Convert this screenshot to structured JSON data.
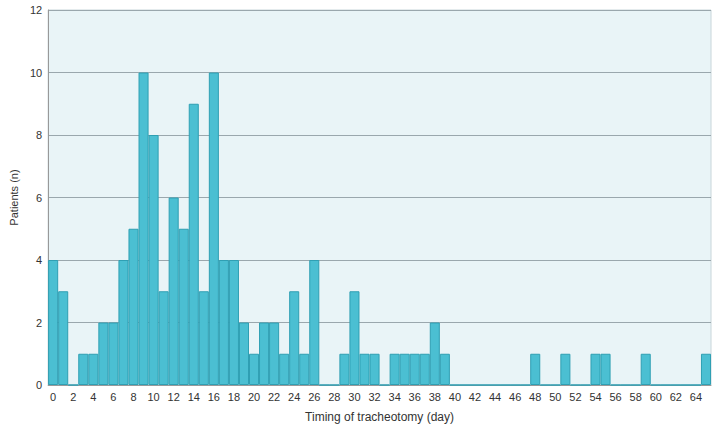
{
  "chart_data": {
    "type": "bar",
    "xlabel": "Timing of tracheotomy (day)",
    "ylabel": "Patients (n)",
    "categories": [
      "0",
      null,
      "2",
      null,
      "4",
      null,
      "6",
      null,
      "8",
      null,
      "10",
      null,
      "12",
      null,
      "14",
      null,
      "16",
      null,
      "18",
      null,
      "20",
      null,
      "22",
      null,
      "24",
      null,
      "26",
      null,
      "28",
      null,
      "30",
      null,
      "32",
      null,
      "34",
      null,
      "36",
      null,
      "38",
      null,
      "40",
      null,
      "42",
      null,
      "44",
      null,
      "46",
      null,
      "48",
      null,
      "50",
      null,
      "52",
      null,
      "54",
      null,
      "56",
      null,
      "58",
      null,
      "60",
      null,
      "62",
      null,
      "64",
      null
    ],
    "values": [
      4,
      3,
      0,
      1,
      1,
      2,
      2,
      4,
      5,
      10,
      8,
      3,
      6,
      5,
      9,
      3,
      10,
      4,
      4,
      2,
      1,
      2,
      2,
      1,
      3,
      1,
      4,
      0,
      0,
      1,
      3,
      1,
      1,
      0,
      1,
      1,
      1,
      1,
      2,
      1,
      0,
      0,
      0,
      0,
      0,
      0,
      0,
      0,
      1,
      0,
      0,
      1,
      0,
      0,
      1,
      1,
      0,
      0,
      0,
      1,
      0,
      0,
      0,
      0,
      0,
      1
    ],
    "color": "#4bbfd2",
    "ylim": [
      0,
      12
    ],
    "yticks": [
      0,
      2,
      4,
      6,
      8,
      10,
      12
    ],
    "grid": true
  }
}
